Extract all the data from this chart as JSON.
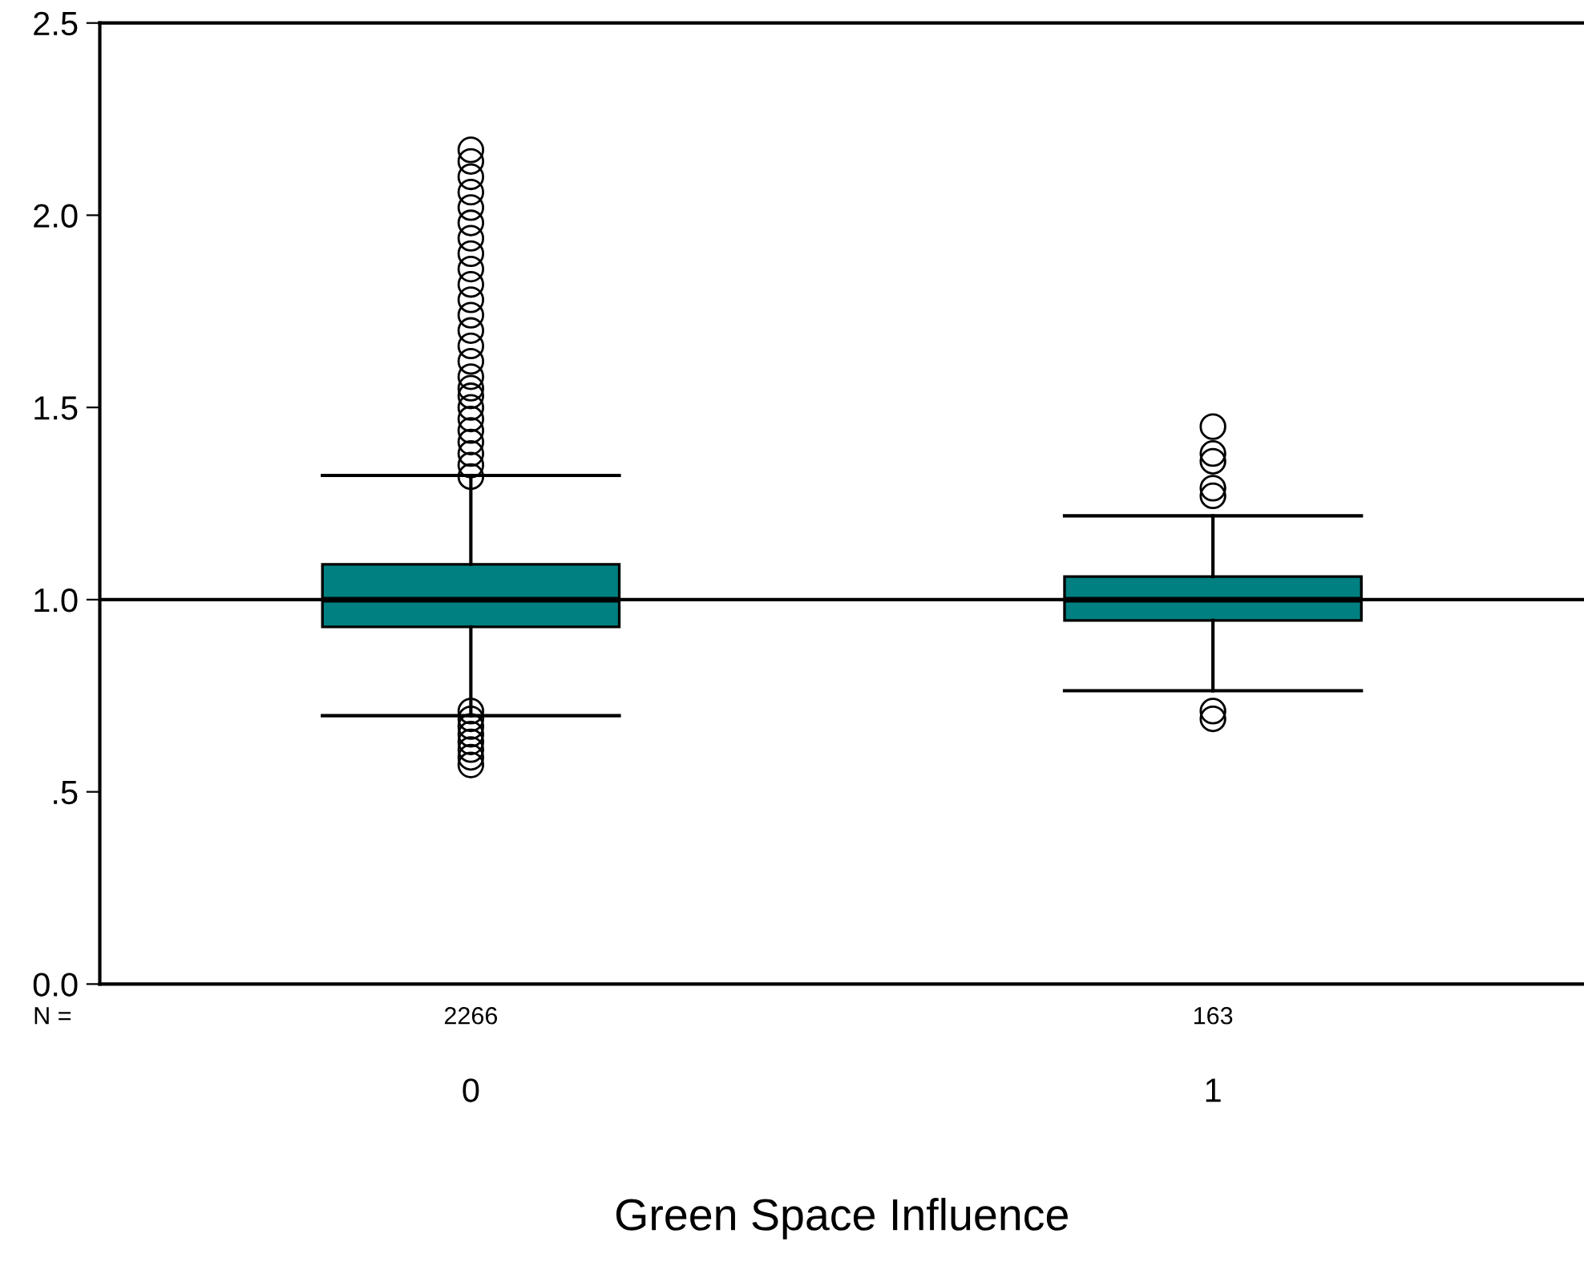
{
  "chart_data": {
    "type": "box",
    "categories": [
      "0",
      "1"
    ],
    "xlabel": "Green Space Influence",
    "boxes": [
      {
        "low": 0.698,
        "q1": 0.929,
        "median": 1.0,
        "q3": 1.092,
        "high": 1.323,
        "outliers": [
          0.57,
          0.59,
          0.61,
          0.63,
          0.65,
          0.67,
          0.69,
          0.71,
          1.32,
          1.35,
          1.38,
          1.41,
          1.44,
          1.47,
          1.5,
          1.53,
          1.55,
          1.58,
          1.62,
          1.66,
          1.7,
          1.74,
          1.78,
          1.82,
          1.86,
          1.9,
          1.94,
          1.98,
          2.02,
          2.06,
          2.1,
          2.14,
          2.17
        ]
      },
      {
        "low": 0.763,
        "q1": 0.946,
        "median": 1.0,
        "q3": 1.06,
        "high": 1.218,
        "outliers": [
          0.69,
          0.71,
          1.27,
          1.29,
          1.36,
          1.38,
          1.45
        ]
      }
    ],
    "color": "#008080",
    "ylim": [
      0,
      2.5
    ],
    "yticks": [
      {
        "value": 0,
        "label": "0.0"
      },
      {
        "value": 0.5,
        "label": ".5"
      },
      {
        "value": 1,
        "label": "1.0"
      },
      {
        "value": 1.5,
        "label": "1.5"
      },
      {
        "value": 2,
        "label": "2.0"
      },
      {
        "value": 2.5,
        "label": "2.5"
      }
    ],
    "ref_lines": [
      {
        "axis": "y",
        "value": 1.0,
        "color": "#000000"
      }
    ],
    "annotations": [
      "N =",
      "2266",
      "163"
    ],
    "grid": false,
    "legend": false,
    "marker": "circle"
  }
}
